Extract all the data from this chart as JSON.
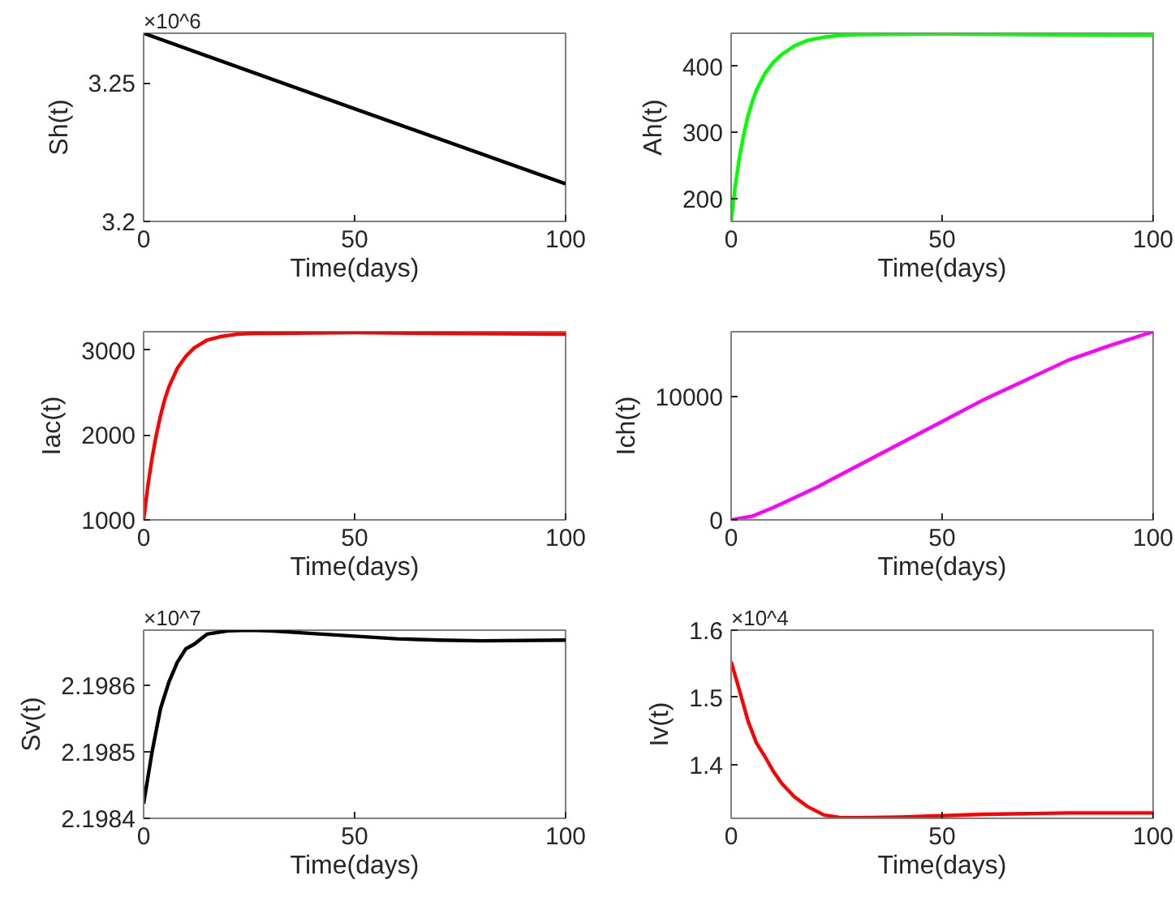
{
  "chart_data": [
    {
      "type": "line",
      "xlabel": "Time(days)",
      "ylabel": "Sh(t)",
      "annotations": [
        "×10^6"
      ],
      "x": [
        0,
        50,
        100
      ],
      "series": [
        {
          "color": "#000000",
          "values": [
            3.268,
            3.2407,
            3.2136
          ]
        }
      ],
      "xlim": [
        0,
        100
      ],
      "ylim": [
        3.2,
        3.268
      ],
      "xticks": [
        0,
        50,
        100
      ],
      "yticks": [
        3.2,
        3.25
      ]
    },
    {
      "type": "line",
      "xlabel": "Time(days)",
      "ylabel": "Ah(t)",
      "x": [
        0,
        1,
        2,
        3,
        4,
        5,
        6,
        8,
        10,
        12,
        15,
        18,
        22,
        26,
        30,
        50,
        70,
        100
      ],
      "series": [
        {
          "color": "#00ff00",
          "values": [
            165,
            220,
            263,
            297,
            325,
            346,
            364,
            389,
            406,
            418,
            431,
            439,
            444,
            447,
            448,
            449,
            448,
            447
          ]
        }
      ],
      "xlim": [
        0,
        100
      ],
      "ylim": [
        165,
        450
      ],
      "xticks": [
        0,
        50,
        100
      ],
      "yticks": [
        200,
        300,
        400
      ]
    },
    {
      "type": "line",
      "xlabel": "Time(days)",
      "ylabel": "Iac(t)",
      "x": [
        0,
        1,
        2,
        3,
        4,
        5,
        6,
        8,
        10,
        12,
        15,
        18,
        22,
        26,
        30,
        50,
        70,
        100
      ],
      "series": [
        {
          "color": "#ff0000",
          "values": [
            1000,
            1400,
            1730,
            2000,
            2230,
            2420,
            2570,
            2790,
            2930,
            3030,
            3120,
            3160,
            3190,
            3200,
            3200,
            3210,
            3200,
            3190
          ]
        }
      ],
      "xlim": [
        0,
        100
      ],
      "ylim": [
        1000,
        3220
      ],
      "xticks": [
        0,
        50,
        100
      ],
      "yticks": [
        1000,
        2000,
        3000
      ]
    },
    {
      "type": "line",
      "xlabel": "Time(days)",
      "ylabel": "Ich(t)",
      "x": [
        0,
        5,
        10,
        15,
        20,
        30,
        40,
        50,
        60,
        70,
        80,
        90,
        100
      ],
      "series": [
        {
          "color": "#ff00ff",
          "values": [
            0,
            300,
            1000,
            1800,
            2600,
            4400,
            6200,
            8000,
            9800,
            11400,
            13000,
            14200,
            15300
          ]
        }
      ],
      "xlim": [
        0,
        100
      ],
      "ylim": [
        0,
        15300
      ],
      "xticks": [
        0,
        50,
        100
      ],
      "yticks": [
        0,
        10000
      ]
    },
    {
      "type": "line",
      "xlabel": "Time(days)",
      "ylabel": "Sv(t)",
      "annotations": [
        "×10^7"
      ],
      "x": [
        0,
        2,
        4,
        6,
        8,
        10,
        12,
        15,
        20,
        25,
        30,
        40,
        50,
        60,
        70,
        80,
        100
      ],
      "series": [
        {
          "color": "#000000",
          "values": [
            2.198422,
            2.1985,
            2.198565,
            2.198605,
            2.198635,
            2.198655,
            2.198662,
            2.198677,
            2.198682,
            2.198683,
            2.198682,
            2.198678,
            2.198674,
            2.19867,
            2.198668,
            2.198667,
            2.198668
          ]
        }
      ],
      "xlim": [
        0,
        100
      ],
      "ylim": [
        2.1984,
        2.198683
      ],
      "xticks": [
        0,
        50,
        100
      ],
      "yticks": [
        2.1984,
        2.1985,
        2.1986
      ]
    },
    {
      "type": "line",
      "xlabel": "Time(days)",
      "ylabel": "Iv(t)",
      "annotations": [
        "×10^4"
      ],
      "x": [
        0,
        2,
        4,
        6,
        8,
        10,
        12,
        15,
        18,
        22,
        26,
        30,
        40,
        50,
        60,
        70,
        80,
        100
      ],
      "series": [
        {
          "color": "#ff0000",
          "values": [
            1.553,
            1.51,
            1.465,
            1.432,
            1.412,
            1.39,
            1.372,
            1.352,
            1.338,
            1.325,
            1.321,
            1.321,
            1.322,
            1.324,
            1.326,
            1.327,
            1.328,
            1.328
          ]
        }
      ],
      "xlim": [
        0,
        100
      ],
      "ylim": [
        1.32,
        1.6
      ],
      "xticks": [
        0,
        50,
        100
      ],
      "yticks": [
        1.4,
        1.5,
        1.6
      ]
    }
  ]
}
